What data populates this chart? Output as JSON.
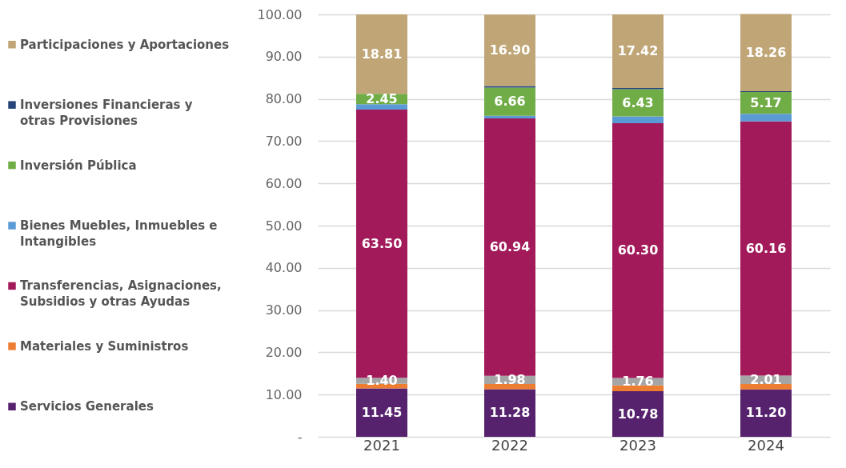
{
  "chart_data": {
    "type": "bar",
    "stacked": true,
    "categories": [
      "2021",
      "2022",
      "2023",
      "2024"
    ],
    "series": [
      {
        "name": "Servicios Generales",
        "color": "#56226e",
        "values": [
          11.45,
          11.28,
          10.78,
          11.2
        ],
        "value_labels": [
          "11.45",
          "11.28",
          "10.78",
          "11.20"
        ]
      },
      {
        "name": "Materiales y Suministros",
        "color": "#ed7d31",
        "values": [
          1.1,
          1.2,
          1.4,
          1.3
        ]
      },
      {
        "color": "#a5a5a5",
        "values": [
          1.4,
          1.98,
          1.76,
          2.01
        ],
        "value_labels": [
          "1.40",
          "1.98",
          "1.76",
          "2.01"
        ]
      },
      {
        "name": "Transferencias, Asignaciones, Subsidios y otras Ayudas",
        "color": "#a21a5a",
        "values": [
          63.5,
          60.94,
          60.3,
          60.16
        ],
        "value_labels": [
          "63.50",
          "60.94",
          "60.30",
          "60.16"
        ]
      },
      {
        "name": "Bienes Muebles, Inmuebles e Intangibles",
        "color": "#5b9bd5",
        "values": [
          1.3,
          0.6,
          1.6,
          1.8
        ]
      },
      {
        "name": "Inversión Pública",
        "color": "#70ad47",
        "values": [
          2.45,
          6.66,
          6.43,
          5.17
        ],
        "value_labels": [
          "2.45",
          "6.66",
          "6.43",
          "5.17"
        ]
      },
      {
        "name": "Inversiones Financieras y otras Provisiones",
        "color": "#264478",
        "values": [
          0,
          0.4,
          0.3,
          0.2
        ]
      },
      {
        "name": "Participaciones y Aportaciones",
        "color": "#c0a677",
        "values": [
          18.81,
          16.9,
          17.42,
          18.26
        ],
        "value_labels": [
          "18.81",
          "16.90",
          "17.42",
          "18.26"
        ]
      }
    ],
    "ylim": [
      0,
      100
    ],
    "yticks": [
      {
        "value": 0,
        "label": "-"
      },
      {
        "value": 10,
        "label": "10.00"
      },
      {
        "value": 20,
        "label": "20.00"
      },
      {
        "value": 30,
        "label": "30.00"
      },
      {
        "value": 40,
        "label": "40.00"
      },
      {
        "value": 50,
        "label": "50.00"
      },
      {
        "value": 60,
        "label": "60.00"
      },
      {
        "value": 70,
        "label": "70.00"
      },
      {
        "value": 80,
        "label": "80.00"
      },
      {
        "value": 90,
        "label": "90.00"
      },
      {
        "value": 100,
        "label": "100.00"
      }
    ],
    "grid": "y",
    "legend": "left"
  }
}
